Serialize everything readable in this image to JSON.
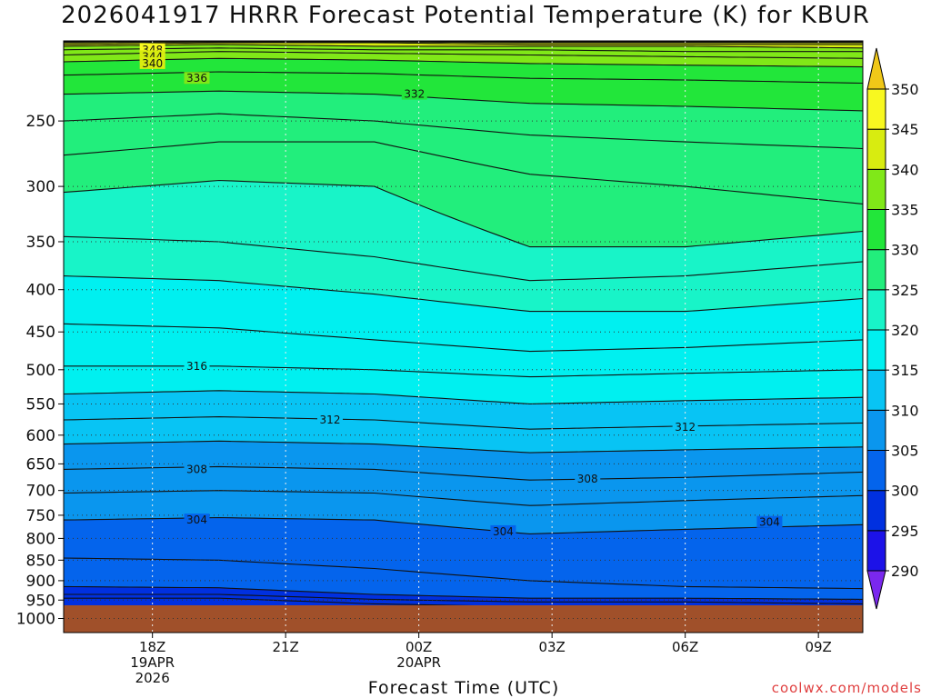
{
  "title": "2026041917 HRRR Forecast Potential Temperature (K) for KBUR",
  "credit": "coolwx.com/models",
  "chart_data": {
    "type": "contour",
    "title": "2026041917 HRRR Forecast Potential Temperature (K) for KBUR",
    "xlabel": "Forecast Time (UTC)",
    "ylabel": "",
    "x_range_hours": [
      -1,
      17
    ],
    "y_axis": "pressure (log scale, inverted)",
    "y_range": [
      1040,
      200
    ],
    "y_ticks": [
      250,
      300,
      350,
      400,
      450,
      500,
      550,
      600,
      650,
      700,
      750,
      800,
      850,
      900,
      950,
      1000
    ],
    "x_ticks": [
      {
        "hour": 1,
        "lines": [
          "18Z",
          "19APR",
          "2026"
        ]
      },
      {
        "hour": 4,
        "lines": [
          "21Z"
        ]
      },
      {
        "hour": 7,
        "lines": [
          "00Z",
          "20APR"
        ]
      },
      {
        "hour": 10,
        "lines": [
          "03Z"
        ]
      },
      {
        "hour": 13,
        "lines": [
          "06Z"
        ]
      },
      {
        "hour": 16,
        "lines": [
          "09Z"
        ]
      }
    ],
    "grid": true,
    "surface_pressure": 985,
    "colorbar": {
      "levels": [
        290,
        295,
        300,
        305,
        310,
        315,
        320,
        325,
        330,
        335,
        340,
        345,
        350
      ],
      "colors": [
        "#7a28ee",
        "#1c12e8",
        "#0030e0",
        "#0464ec",
        "#0a96ee",
        "#08c4f4",
        "#00f0f0",
        "#18f4c8",
        "#22ee7c",
        "#22e63a",
        "#80e818",
        "#d8ec10",
        "#f8f820",
        "#f0c818"
      ],
      "labels": [
        "290",
        "295",
        "300",
        "305",
        "310",
        "315",
        "320",
        "325",
        "330",
        "335",
        "340",
        "345",
        "350"
      ],
      "extend": "both"
    },
    "contour_interval": 2,
    "contours": [
      {
        "value": 296,
        "pressure": [
          945,
          945,
          960,
          968,
          968,
          975
        ]
      },
      {
        "value": 298,
        "pressure": [
          935,
          935,
          948,
          955,
          955,
          960
        ]
      },
      {
        "value": 300,
        "pressure": [
          915,
          918,
          935,
          945,
          945,
          948
        ]
      },
      {
        "value": 302,
        "pressure": [
          845,
          850,
          870,
          900,
          915,
          920
        ]
      },
      {
        "value": 304,
        "pressure": [
          760,
          755,
          760,
          790,
          780,
          770
        ]
      },
      {
        "value": 306,
        "pressure": [
          705,
          700,
          705,
          730,
          720,
          710
        ]
      },
      {
        "value": 308,
        "pressure": [
          660,
          655,
          660,
          680,
          675,
          665
        ]
      },
      {
        "value": 310,
        "pressure": [
          615,
          610,
          615,
          630,
          625,
          620
        ]
      },
      {
        "value": 312,
        "pressure": [
          575,
          570,
          575,
          590,
          585,
          580
        ]
      },
      {
        "value": 314,
        "pressure": [
          535,
          530,
          535,
          550,
          545,
          540
        ]
      },
      {
        "value": 316,
        "pressure": [
          495,
          495,
          500,
          510,
          505,
          500
        ]
      },
      {
        "value": 318,
        "pressure": [
          440,
          445,
          460,
          475,
          470,
          460
        ]
      },
      {
        "value": 320,
        "pressure": [
          385,
          390,
          405,
          425,
          425,
          410
        ]
      },
      {
        "value": 322,
        "pressure": [
          345,
          350,
          365,
          390,
          385,
          370
        ]
      },
      {
        "value": 324,
        "pressure": [
          305,
          295,
          300,
          355,
          355,
          340
        ]
      },
      {
        "value": 326,
        "pressure": [
          275,
          265,
          265,
          290,
          300,
          315
        ]
      },
      {
        "value": 328,
        "pressure": [
          250,
          245,
          250,
          260,
          265,
          270
        ]
      },
      {
        "value": 330,
        "pressure": [
          232,
          230,
          232,
          238,
          240,
          243
        ]
      },
      {
        "value": 332,
        "pressure": [
          220,
          218,
          219,
          222,
          223,
          225
        ]
      },
      {
        "value": 334,
        "pressure": [
          212,
          210,
          211,
          213,
          214,
          215
        ]
      },
      {
        "value": 336,
        "pressure": [
          208,
          206,
          207,
          208,
          209,
          210
        ]
      },
      {
        "value": 338,
        "pressure": [
          205,
          204,
          205,
          205,
          206,
          206
        ]
      },
      {
        "value": 340,
        "pressure": [
          203,
          202,
          203,
          203,
          203,
          204
        ]
      },
      {
        "value": 342,
        "pressure": [
          202,
          201,
          201,
          202,
          202,
          202
        ]
      },
      {
        "value": 344,
        "pressure": [
          201,
          200.5,
          200.5,
          201,
          201,
          201
        ]
      },
      {
        "value": 346,
        "pressure": [
          200.5,
          200.2,
          200.2,
          200.5,
          200.5,
          200.5
        ]
      },
      {
        "value": 348,
        "pressure": [
          200.2,
          200.1,
          200.1,
          200.2,
          200.2,
          200.2
        ]
      }
    ],
    "contour_hours": [
      -1,
      2.5,
      6,
      9.5,
      13,
      17
    ],
    "contour_labels": [
      {
        "value": "348",
        "hour": 1.0,
        "pressure": 205
      },
      {
        "value": "344",
        "hour": 1.0,
        "pressure": 209
      },
      {
        "value": "340",
        "hour": 1.0,
        "pressure": 213
      },
      {
        "value": "336",
        "hour": 2.0,
        "pressure": 222
      },
      {
        "value": "332",
        "hour": 6.9,
        "pressure": 232
      },
      {
        "value": "316",
        "hour": 2.0,
        "pressure": 495
      },
      {
        "value": "312",
        "hour": 5.0,
        "pressure": 575
      },
      {
        "value": "312",
        "hour": 13.0,
        "pressure": 587
      },
      {
        "value": "308",
        "hour": 2.0,
        "pressure": 660
      },
      {
        "value": "308",
        "hour": 10.8,
        "pressure": 678
      },
      {
        "value": "304",
        "hour": 2.0,
        "pressure": 760
      },
      {
        "value": "304",
        "hour": 8.9,
        "pressure": 785
      },
      {
        "value": "304",
        "hour": 14.9,
        "pressure": 765
      }
    ]
  }
}
